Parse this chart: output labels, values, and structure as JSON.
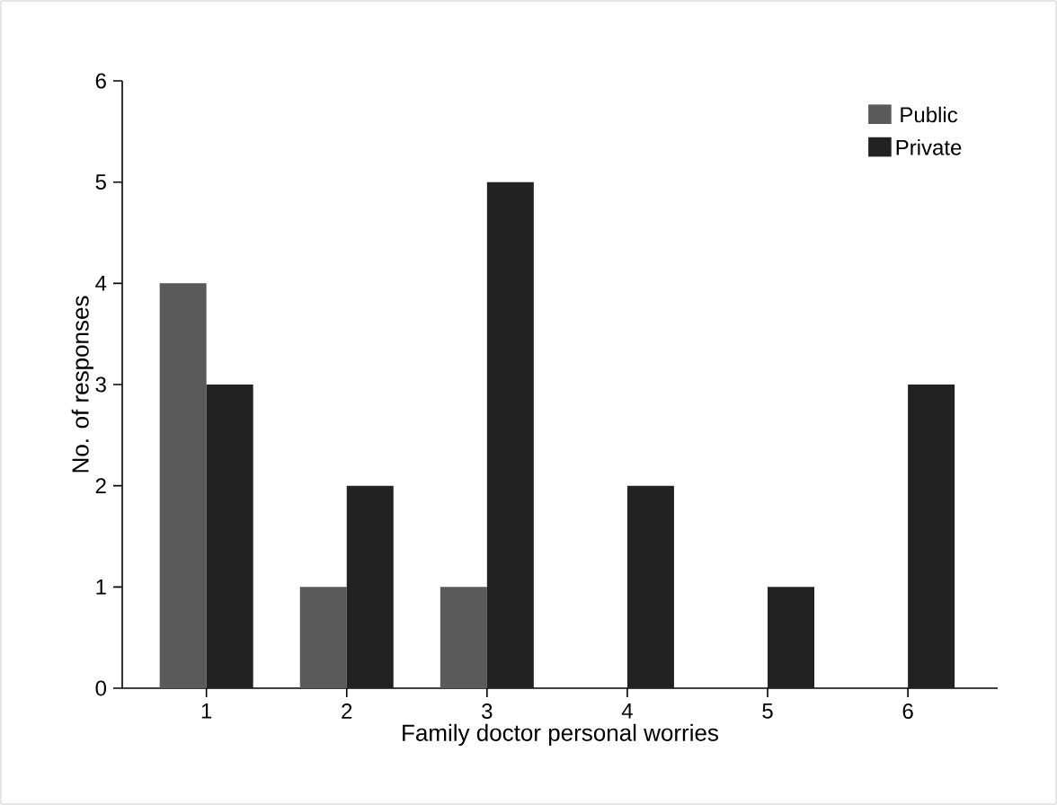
{
  "chart_data": {
    "type": "bar",
    "xlabel": "Family doctor personal worries",
    "ylabel": "No. of responses",
    "categories": [
      "1",
      "2",
      "3",
      "4",
      "5",
      "6"
    ],
    "series": [
      {
        "name": "Public",
        "color": "#5a5a5a",
        "values": [
          4,
          1,
          1,
          0,
          0,
          0
        ]
      },
      {
        "name": "Private",
        "color": "#222222",
        "values": [
          3,
          2,
          5,
          2,
          1,
          3
        ]
      }
    ],
    "ylim": [
      0,
      6
    ],
    "yticks": [
      0,
      1,
      2,
      3,
      4,
      5,
      6
    ],
    "legend": "top right",
    "grid": false
  }
}
